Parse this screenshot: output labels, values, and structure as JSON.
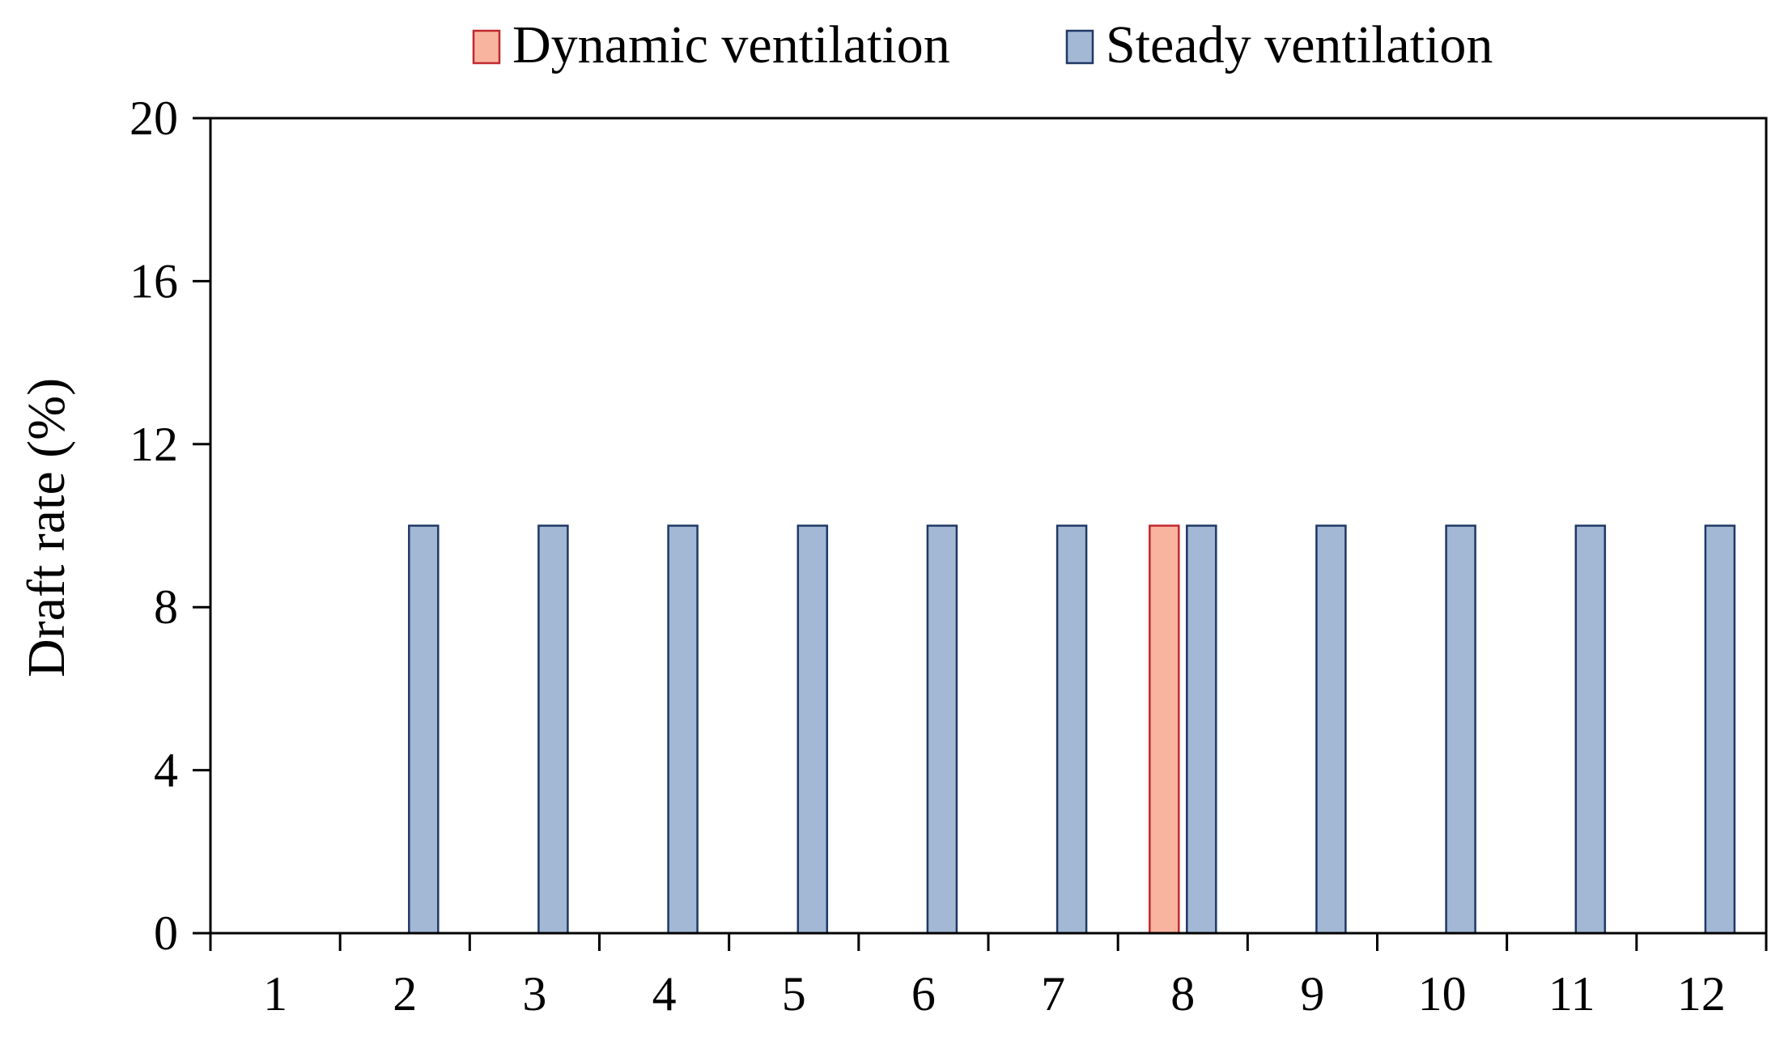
{
  "chart_data": {
    "type": "bar",
    "title": "",
    "xlabel": "",
    "ylabel": "Draft rate (%)",
    "ylim": [
      0,
      20
    ],
    "yticks": [
      0,
      4,
      8,
      12,
      16,
      20
    ],
    "categories": [
      "1",
      "2",
      "3",
      "4",
      "5",
      "6",
      "7",
      "8",
      "9",
      "10",
      "11",
      "12"
    ],
    "legend_position": "top",
    "grid": false,
    "series": [
      {
        "name": "Dynamic ventilation",
        "color": "#F9B4A0",
        "stroke": "#C0282D",
        "values": [
          0,
          0,
          0,
          0,
          0,
          0,
          0,
          10,
          0,
          0,
          0,
          0
        ]
      },
      {
        "name": "Steady ventilation",
        "color": "#A3B8D4",
        "stroke": "#1F3864",
        "values": [
          0,
          10,
          10,
          10,
          10,
          10,
          10,
          10,
          10,
          10,
          10,
          10
        ]
      }
    ]
  }
}
